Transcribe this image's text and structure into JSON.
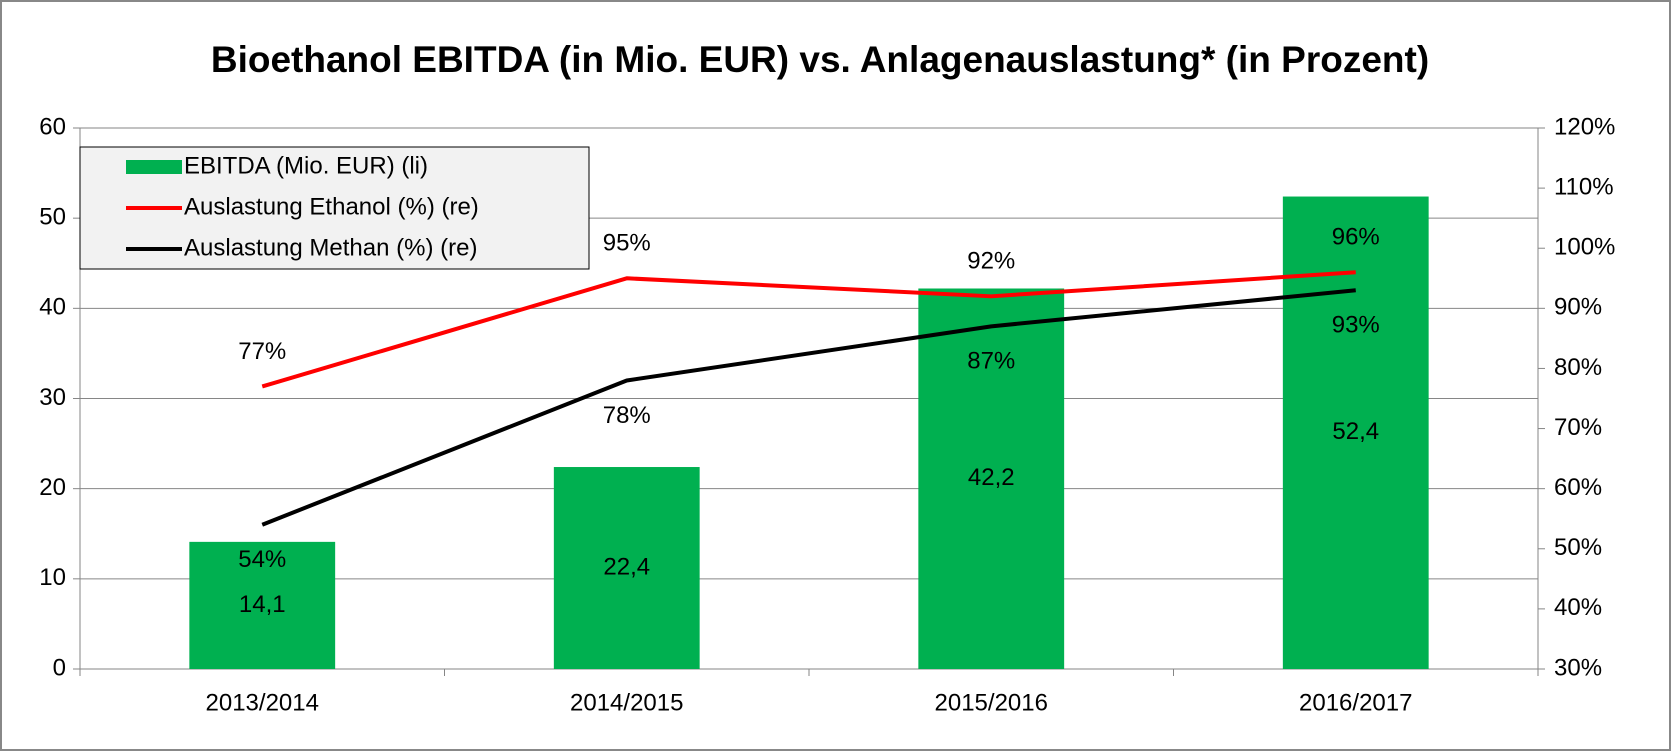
{
  "chart_data": {
    "type": "bar",
    "title": "Bioethanol EBITDA (in Mio. EUR) vs. Anlagenauslastung*  (in Prozent)",
    "categories": [
      "2013/2014",
      "2014/2015",
      "2015/2016",
      "2016/2017"
    ],
    "series": [
      {
        "name": "EBITDA (Mio. EUR) (li)",
        "color": "#00b050",
        "type": "bar",
        "values": [
          14.1,
          22.4,
          42.2,
          52.4
        ],
        "value_labels": [
          "14,1",
          "22,4",
          "42,2",
          "52,4"
        ]
      },
      {
        "name": "Auslastung Ethanol (%) (re)",
        "color": "#ff0000",
        "type": "line",
        "axis": "y2",
        "values": [
          77,
          95,
          92,
          96
        ],
        "value_labels": [
          "77%",
          "95%",
          "92%",
          "96%"
        ]
      },
      {
        "name": "Auslastung Methan (%) (re)",
        "color": "#000000",
        "type": "line",
        "axis": "y2",
        "values": [
          54,
          78,
          87,
          93
        ],
        "value_labels": [
          "54%",
          "78%",
          "87%",
          "93%"
        ]
      }
    ],
    "ylim": [
      0,
      60
    ],
    "yticks": [
      0,
      10,
      20,
      30,
      40,
      50,
      60
    ],
    "y2lim": [
      30,
      120
    ],
    "y2ticks": [
      {
        "value": 30,
        "label": "30%"
      },
      {
        "value": 40,
        "label": "40%"
      },
      {
        "value": 50,
        "label": "50%"
      },
      {
        "value": 60,
        "label": "60%"
      },
      {
        "value": 70,
        "label": "70%"
      },
      {
        "value": 80,
        "label": "80%"
      },
      {
        "value": 90,
        "label": "90%"
      },
      {
        "value": 100,
        "label": "100%"
      },
      {
        "value": 110,
        "label": "110%"
      },
      {
        "value": 120,
        "label": "120%"
      }
    ],
    "grid": true,
    "legend": "top-left"
  }
}
